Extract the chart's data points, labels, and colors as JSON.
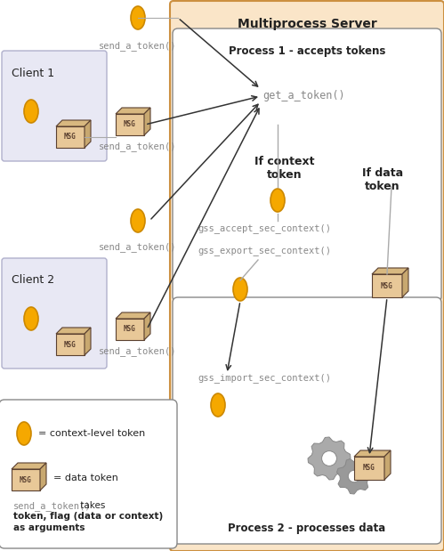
{
  "title": "Multiprocess Server",
  "p1_label": "Process 1 - accepts tokens",
  "p2_label": "Process 2 - processes data",
  "client1_label": "Client 1",
  "client2_label": "Client 2",
  "get_token_label": "get_a_token()",
  "gss_accept_label": "gss_accept_sec_context()",
  "gss_export_label": "gss_export_sec_context()",
  "gss_import_label": "gss_import_sec_context()",
  "if_context_label": "If context\ntoken",
  "if_data_label": "If data\ntoken",
  "legend_line1": "= context-level token",
  "legend_line2": "= data token",
  "legend_line3_mono": "send_a_token()",
  "legend_line3_normal": " takes\ntoken, flag (data or context)\nas arguments",
  "send_a_token": "send_a_token()",
  "server_bg": "#FAE5C8",
  "white": "#FFFFFF",
  "client_bg": "#E8E8F4",
  "client_edge": "#B0B0CC",
  "inner_box_edge": "#888888",
  "token_fill": "#F5A800",
  "token_edge": "#CC8800",
  "msg_front": "#E8C898",
  "msg_top": "#D8B880",
  "msg_right": "#C8A870",
  "msg_text": "#5A4030",
  "gear_fill": "#AAAAAA",
  "gear_edge": "#888888",
  "text_dark": "#222222",
  "text_mono": "#888888",
  "arrow_color": "#333333",
  "dashed_color": "#888888",
  "server_edge": "#CC9040"
}
